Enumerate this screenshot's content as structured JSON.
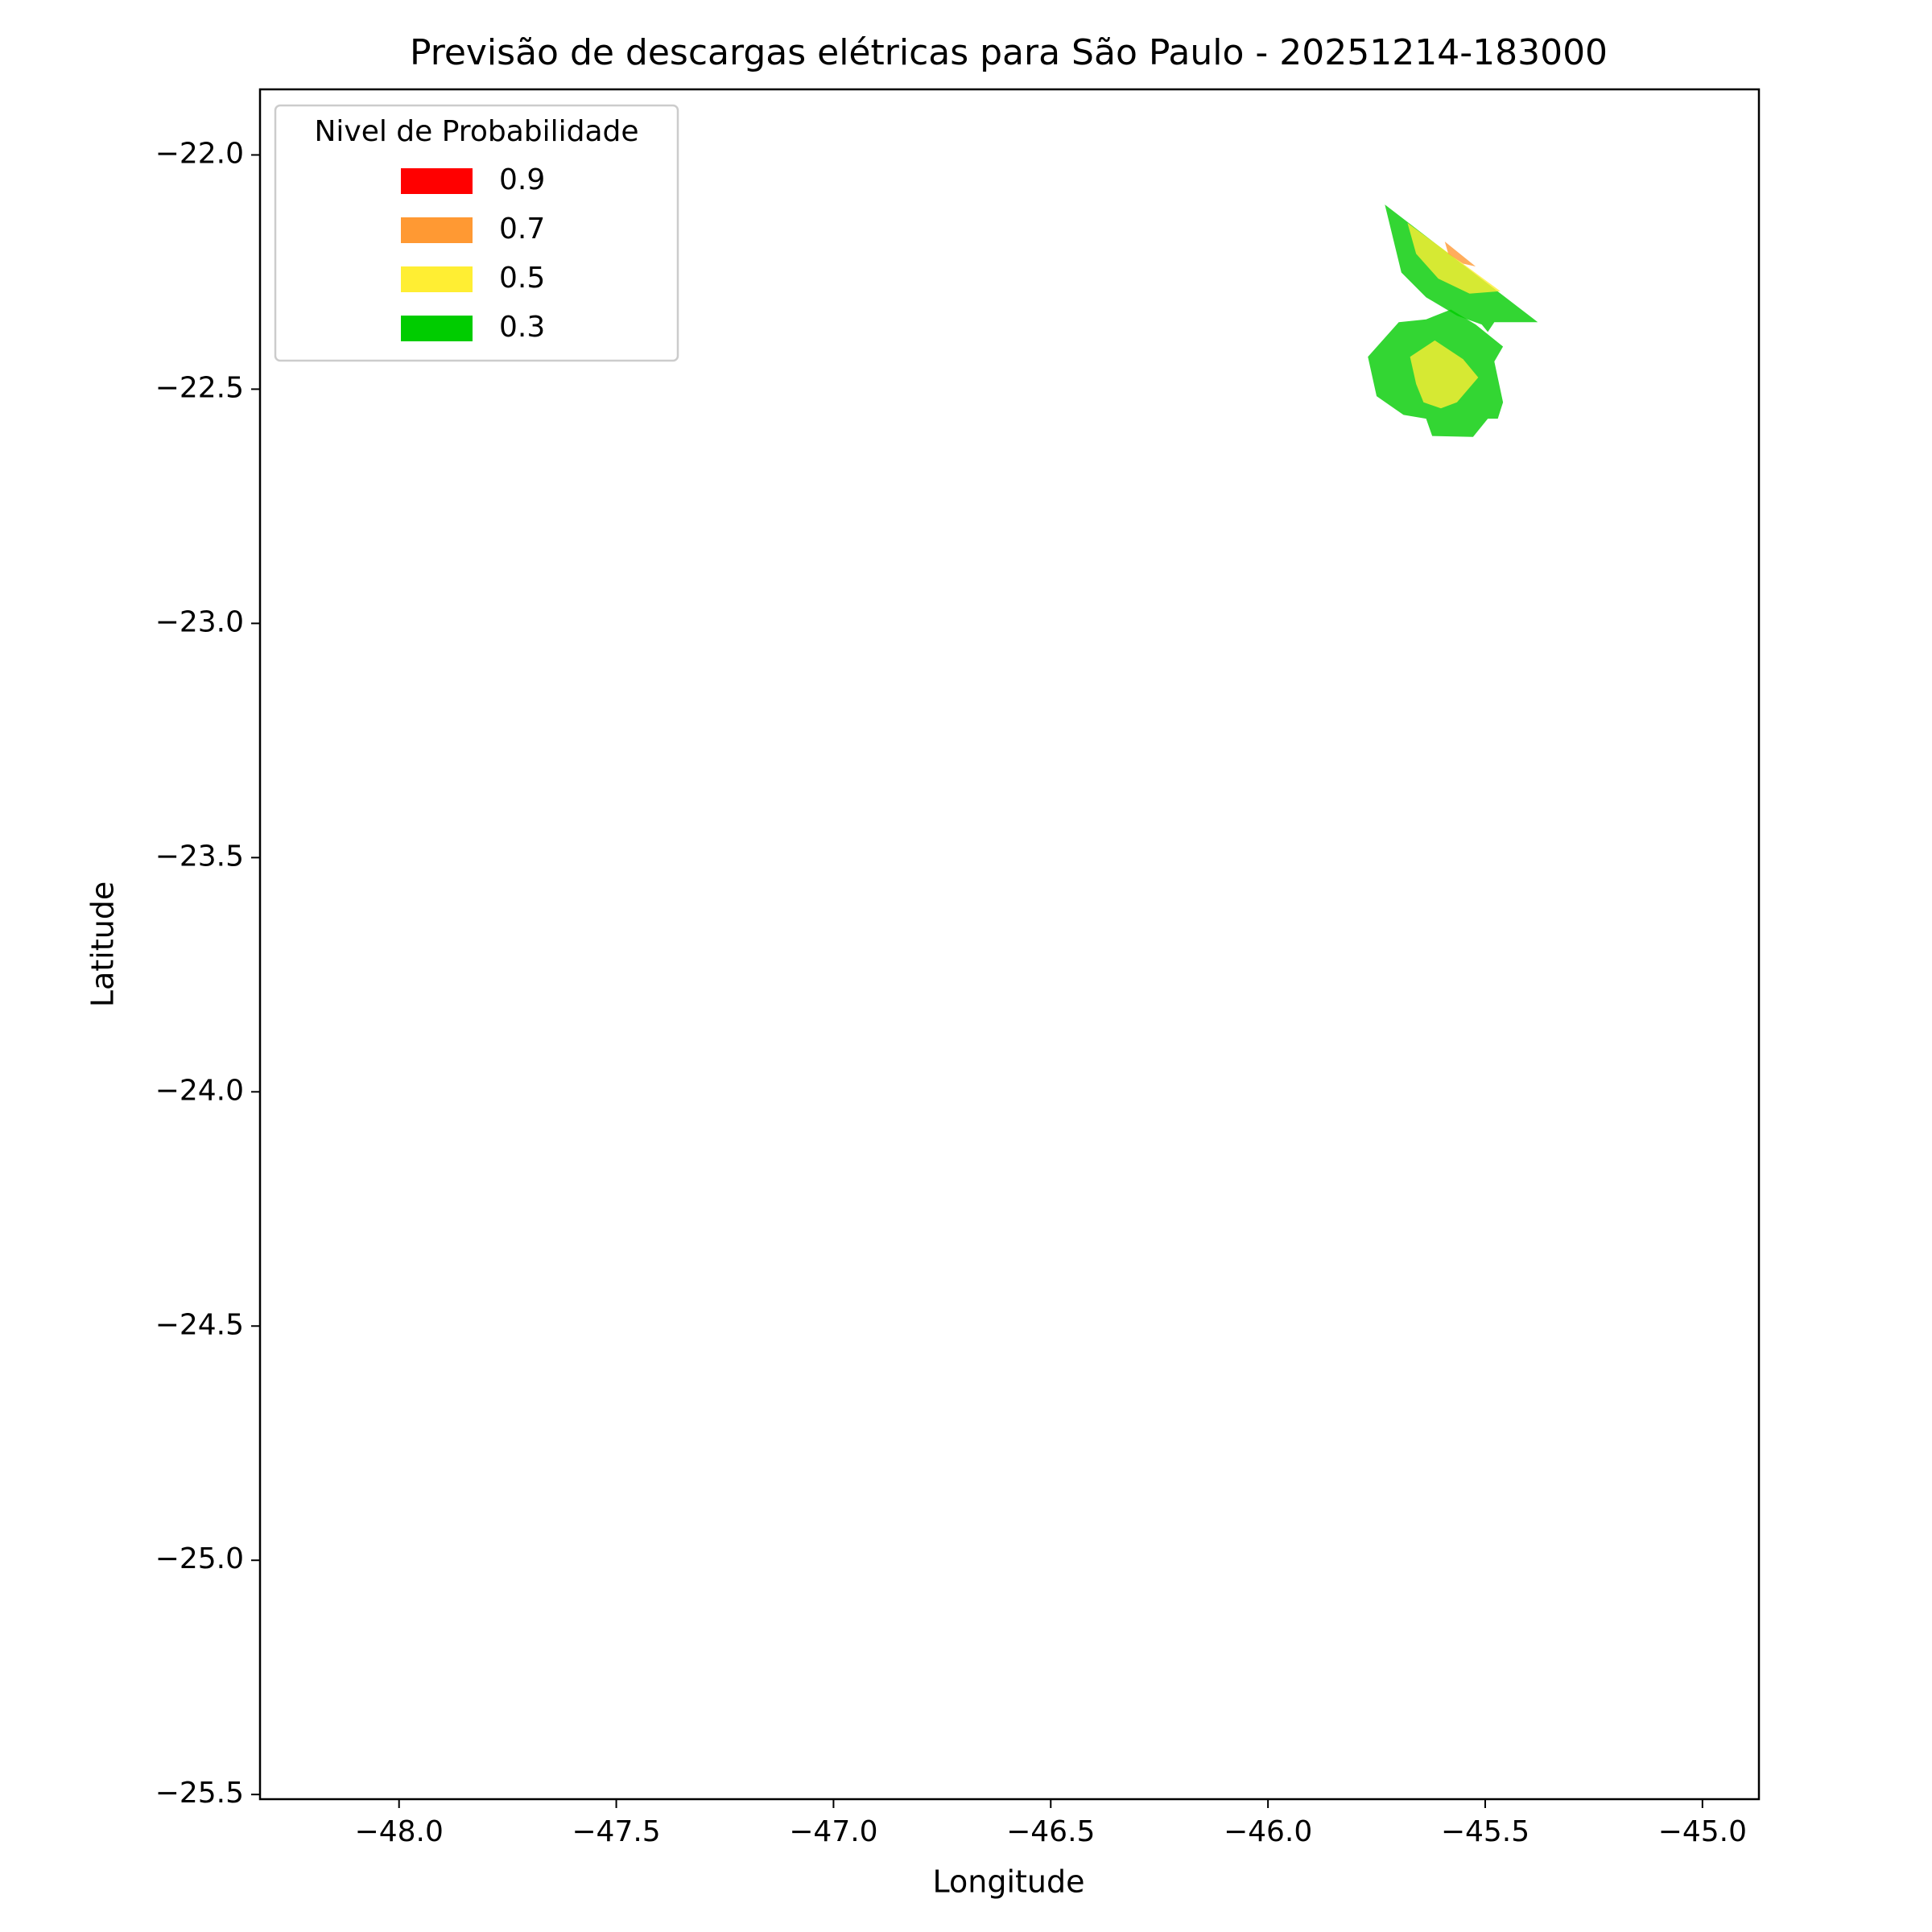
{
  "chart_data": {
    "type": "contour",
    "title": "Previsão de descargas elétricas para São Paulo - 20251214-183000",
    "x_label": "Longitude",
    "y_label": "Latitude",
    "xlim": [
      -48.32,
      -44.87
    ],
    "ylim": [
      -25.51,
      -21.86
    ],
    "xticks": [
      {
        "value": -48,
        "label": "−48.0"
      },
      {
        "value": -47.5,
        "label": "−47.5"
      },
      {
        "value": -47,
        "label": "−47.0"
      },
      {
        "value": -46.5,
        "label": "−46.5"
      },
      {
        "value": -46,
        "label": "−46.0"
      },
      {
        "value": -45.5,
        "label": "−45.5"
      },
      {
        "value": -45,
        "label": "−45.0"
      }
    ],
    "yticks": [
      {
        "value": -22,
        "label": "−22.0"
      },
      {
        "value": -22.5,
        "label": "−22.5"
      },
      {
        "value": -23,
        "label": "−23.0"
      },
      {
        "value": -23.5,
        "label": "−23.5"
      },
      {
        "value": -24,
        "label": "−24.0"
      },
      {
        "value": -24.5,
        "label": "−24.5"
      },
      {
        "value": -25,
        "label": "−25.0"
      },
      {
        "value": -25.5,
        "label": "−25.5"
      }
    ],
    "legend_title": "Nivel de Probabilidade",
    "legend_loc": "upper left",
    "alpha": 0.8,
    "levels": [
      {
        "name": "0.9",
        "value": 0.9,
        "color": "#ff0000"
      },
      {
        "name": "0.7",
        "value": 0.7,
        "color": "#ff9933"
      },
      {
        "name": "0.5",
        "value": 0.5,
        "color": "#ffee33"
      },
      {
        "name": "0.3",
        "value": 0.3,
        "color": "#00cc00"
      }
    ],
    "regions": [
      {
        "level": 0.3,
        "lon": [
          -45.731,
          -45.379,
          -45.479,
          -45.494,
          -45.508,
          -45.565,
          -45.636,
          -45.693
        ],
        "lat": [
          -22.106,
          -22.357,
          -22.357,
          -22.378,
          -22.362,
          -22.343,
          -22.304,
          -22.251
        ]
      },
      {
        "level": 0.5,
        "lon": [
          -45.679,
          -45.465,
          -45.536,
          -45.608,
          -45.659
        ],
        "lat": [
          -22.145,
          -22.291,
          -22.296,
          -22.264,
          -22.211
        ]
      },
      {
        "level": 0.7,
        "lon": [
          -45.593,
          -45.522,
          -45.551,
          -45.585
        ],
        "lat": [
          -22.185,
          -22.238,
          -22.232,
          -22.211
        ]
      },
      {
        "level": 0.3,
        "lon": [
          -45.77,
          -45.699,
          -45.636,
          -45.579,
          -45.522,
          -45.459,
          -45.479,
          -45.459,
          -45.471,
          -45.494,
          -45.528,
          -45.622,
          -45.636,
          -45.688,
          -45.75
        ],
        "lat": [
          -22.431,
          -22.357,
          -22.351,
          -22.33,
          -22.362,
          -22.409,
          -22.441,
          -22.528,
          -22.563,
          -22.563,
          -22.602,
          -22.6,
          -22.563,
          -22.555,
          -22.515
        ]
      },
      {
        "level": 0.5,
        "lon": [
          -45.673,
          -45.616,
          -45.551,
          -45.516,
          -45.565,
          -45.602,
          -45.642,
          -45.659
        ],
        "lat": [
          -22.431,
          -22.396,
          -22.436,
          -22.475,
          -22.528,
          -22.541,
          -22.528,
          -22.489
        ]
      }
    ]
  }
}
